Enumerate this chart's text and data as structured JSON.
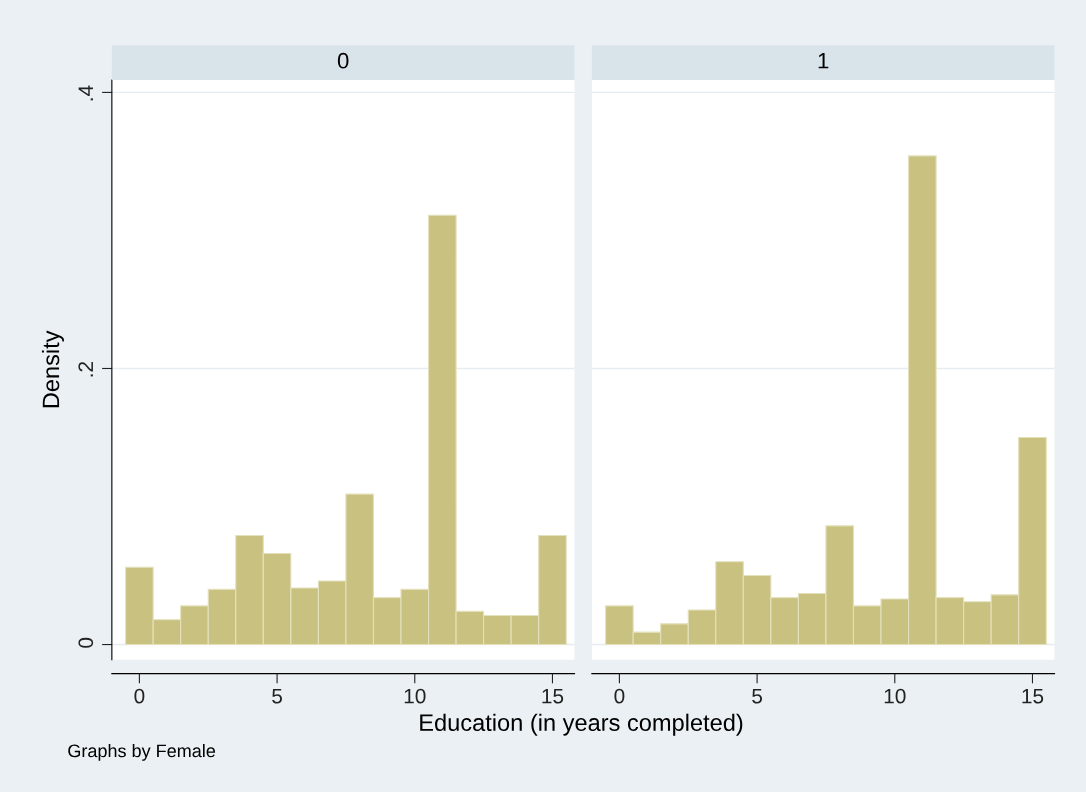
{
  "chart_data": [
    {
      "type": "histogram",
      "title": "0",
      "ylabel": "Density",
      "xlabel": "Education (in years completed)",
      "annotations": [
        "Graphs by Female"
      ],
      "bins": [
        -0.5,
        0.5,
        1.5,
        2.5,
        3.5,
        4.5,
        5.5,
        6.5,
        7.5,
        8.5,
        9.5,
        10.5,
        11.5,
        12.5,
        13.5,
        14.5,
        15.5
      ],
      "values": [
        0.056,
        0.018,
        0.028,
        0.04,
        0.079,
        0.066,
        0.041,
        0.046,
        0.109,
        0.034,
        0.04,
        0.311,
        0.024,
        0.021,
        0.021,
        0.079
      ],
      "color": "#c9c17f",
      "xlim": [
        -1,
        15.8
      ],
      "ylim": [
        -0.011,
        0.409
      ],
      "xticks": [
        0,
        5,
        10,
        15
      ],
      "yticks": [
        0,
        {
          "value": 0.2,
          "label": ".2"
        },
        {
          "value": 0.4,
          "label": ".4"
        }
      ],
      "grid": "y"
    },
    {
      "type": "histogram",
      "title": "1",
      "bins": [
        -0.5,
        0.5,
        1.5,
        2.5,
        3.5,
        4.5,
        5.5,
        6.5,
        7.5,
        8.5,
        9.5,
        10.5,
        11.5,
        12.5,
        13.5,
        14.5,
        15.5
      ],
      "values": [
        0.028,
        0.009,
        0.015,
        0.025,
        0.06,
        0.05,
        0.034,
        0.037,
        0.086,
        0.028,
        0.033,
        0.354,
        0.034,
        0.031,
        0.036,
        0.15
      ],
      "color": "#c9c17f",
      "xlim": [
        -1,
        15.8
      ],
      "ylim": [
        -0.011,
        0.409
      ],
      "xticks": [
        0,
        5,
        10,
        15
      ],
      "yticks": [
        {
          "value": 0,
          "label": null
        },
        {
          "value": 0.2,
          "label": null
        },
        {
          "value": 0.4,
          "label": null
        }
      ],
      "grid": "y",
      "tick_labels": "x"
    }
  ]
}
